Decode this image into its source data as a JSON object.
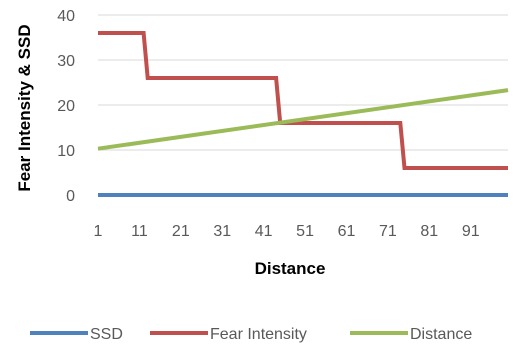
{
  "chart_data": {
    "type": "line",
    "xlabel": "Distance",
    "ylabel": "Fear Intensity & SSD",
    "xlim": [
      1,
      100
    ],
    "ylim": [
      0,
      40
    ],
    "y_ticks": [
      "0",
      "10",
      "20",
      "30",
      "40"
    ],
    "x_ticks": [
      "1",
      "11",
      "21",
      "31",
      "41",
      "51",
      "61",
      "71",
      "81",
      "91"
    ],
    "x_tick_values": [
      1,
      11,
      21,
      31,
      41,
      51,
      61,
      71,
      81,
      91
    ],
    "grid": true,
    "legend_position": "bottom",
    "series": [
      {
        "name": "SSD",
        "color": "#4f81bd",
        "points": [
          [
            1,
            0
          ],
          [
            100,
            0
          ]
        ]
      },
      {
        "name": "Fear Intensity",
        "color": "#c0504d",
        "points": [
          [
            1,
            36
          ],
          [
            12,
            36
          ],
          [
            13,
            26
          ],
          [
            44,
            26
          ],
          [
            45,
            16
          ],
          [
            74,
            16
          ],
          [
            75,
            6
          ],
          [
            100,
            6
          ]
        ]
      },
      {
        "name": "Distance",
        "color": "#9bbb59",
        "points": [
          [
            1,
            10.3
          ],
          [
            100,
            23.3
          ]
        ]
      }
    ]
  }
}
